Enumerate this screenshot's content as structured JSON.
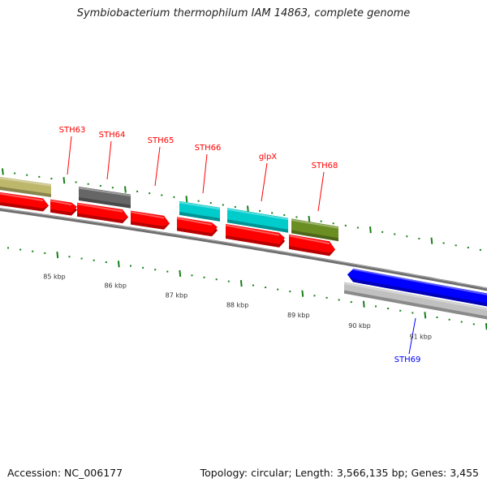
{
  "title": "Symbiobacterium thermophilum IAM 14863, complete genome",
  "footer": {
    "accession": "Accession: NC_006177",
    "topology": "Topology: circular; Length: 3,566,135 bp; Genes: 3,455"
  },
  "colors": {
    "forward_cds": "#ff0000",
    "reverse_cds": "#0000ff",
    "backbone": "#808080",
    "ticks": "#1a7f1a",
    "cyan": "#00cccc",
    "olive": "#6b8e23",
    "khaki": "#bdb76b",
    "dark_gray": "#666666",
    "light_gray": "#c0c0c0"
  },
  "gene_labels": [
    {
      "name": "STH63",
      "color": "#ff0000"
    },
    {
      "name": "STH64",
      "color": "#ff0000"
    },
    {
      "name": "STH65",
      "color": "#ff0000"
    },
    {
      "name": "STH66",
      "color": "#ff0000"
    },
    {
      "name": "glpX",
      "color": "#ff0000"
    },
    {
      "name": "STH68",
      "color": "#ff0000"
    },
    {
      "name": "STH69",
      "color": "#0000ff"
    }
  ],
  "scale_labels": [
    "85 kbp",
    "86 kbp",
    "87 kbp",
    "88 kbp",
    "89 kbp",
    "90 kbp",
    "91 kbp"
  ]
}
